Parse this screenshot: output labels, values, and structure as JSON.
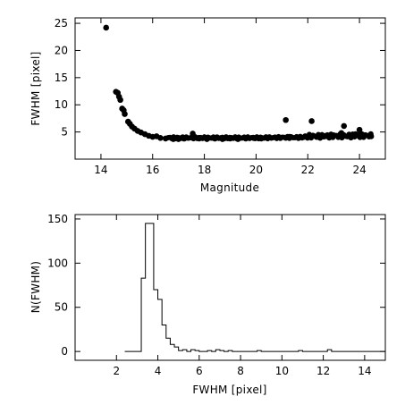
{
  "chart_data": [
    {
      "type": "scatter",
      "xlabel": "Magnitude",
      "ylabel": "FWHM [pixel]",
      "xlim": [
        13,
        25
      ],
      "ylim": [
        0,
        26
      ],
      "xticks": [
        14,
        16,
        18,
        20,
        22,
        24
      ],
      "yticks": [
        5,
        10,
        15,
        20,
        25
      ],
      "xtick_labels": [
        "14",
        "16",
        "18",
        "20",
        "22",
        "24"
      ],
      "ytick_labels": [
        "5",
        "10",
        "15",
        "20",
        "25"
      ],
      "points": [
        [
          14.2,
          24.2
        ],
        [
          14.58,
          12.4
        ],
        [
          14.65,
          12.2
        ],
        [
          14.7,
          11.5
        ],
        [
          14.75,
          10.9
        ],
        [
          14.82,
          9.3
        ],
        [
          14.88,
          9.0
        ],
        [
          14.92,
          8.3
        ],
        [
          15.05,
          6.9
        ],
        [
          15.12,
          6.5
        ],
        [
          15.2,
          6.0
        ],
        [
          15.3,
          5.6
        ],
        [
          15.42,
          5.2
        ],
        [
          15.55,
          4.9
        ],
        [
          15.7,
          4.6
        ],
        [
          15.85,
          4.3
        ],
        [
          16.0,
          4.1
        ],
        [
          16.15,
          4.2
        ],
        [
          16.3,
          3.9
        ],
        [
          16.5,
          3.8
        ],
        [
          16.8,
          3.7
        ],
        [
          17.0,
          3.7
        ],
        [
          17.2,
          3.8
        ],
        [
          17.55,
          4.7
        ],
        [
          17.8,
          3.8
        ],
        [
          18.1,
          3.7
        ],
        [
          18.4,
          3.8
        ],
        [
          18.7,
          3.7
        ],
        [
          19.0,
          3.8
        ],
        [
          19.3,
          3.7
        ],
        [
          19.6,
          3.8
        ],
        [
          19.9,
          3.9
        ],
        [
          20.2,
          3.8
        ],
        [
          20.5,
          4.0
        ],
        [
          20.8,
          3.9
        ],
        [
          21.15,
          7.2
        ],
        [
          21.3,
          4.1
        ],
        [
          21.6,
          4.0
        ],
        [
          21.9,
          4.2
        ],
        [
          22.15,
          7.0
        ],
        [
          22.4,
          4.1
        ],
        [
          22.7,
          4.3
        ],
        [
          23.0,
          4.4
        ],
        [
          23.3,
          4.8
        ],
        [
          23.4,
          6.1
        ],
        [
          23.6,
          4.5
        ],
        [
          23.85,
          4.6
        ],
        [
          24.0,
          5.4
        ],
        [
          24.2,
          4.4
        ],
        [
          24.45,
          4.2
        ]
      ]
    },
    {
      "type": "histogram",
      "xlabel": "FWHM [pixel]",
      "ylabel": "N(FWHM)",
      "xlim": [
        0,
        15
      ],
      "ylim": [
        -10,
        155
      ],
      "xticks": [
        2,
        4,
        6,
        8,
        10,
        12,
        14
      ],
      "yticks": [
        0,
        50,
        100,
        150
      ],
      "xtick_labels": [
        "2",
        "4",
        "6",
        "8",
        "10",
        "12",
        "14"
      ],
      "ytick_labels": [
        "0",
        "50",
        "100",
        "150"
      ],
      "bin_width": 0.2,
      "bins": [
        [
          2.5,
          0
        ],
        [
          2.7,
          0
        ],
        [
          2.9,
          0
        ],
        [
          3.1,
          0
        ],
        [
          3.3,
          83
        ],
        [
          3.5,
          145
        ],
        [
          3.7,
          145
        ],
        [
          3.9,
          70
        ],
        [
          4.1,
          59
        ],
        [
          4.3,
          30
        ],
        [
          4.5,
          15
        ],
        [
          4.7,
          8
        ],
        [
          4.9,
          5
        ],
        [
          5.1,
          1
        ],
        [
          5.3,
          2
        ],
        [
          5.5,
          0
        ],
        [
          5.7,
          2
        ],
        [
          5.9,
          1
        ],
        [
          6.1,
          0
        ],
        [
          6.3,
          0
        ],
        [
          6.5,
          1
        ],
        [
          6.7,
          0
        ],
        [
          6.9,
          2
        ],
        [
          7.1,
          1
        ],
        [
          7.3,
          0
        ],
        [
          7.5,
          1
        ],
        [
          7.7,
          0
        ],
        [
          7.9,
          0
        ],
        [
          8.1,
          0
        ],
        [
          8.3,
          0
        ],
        [
          8.5,
          0
        ],
        [
          8.7,
          0
        ],
        [
          8.9,
          1
        ],
        [
          9.1,
          0
        ],
        [
          9.3,
          0
        ],
        [
          9.5,
          0
        ],
        [
          9.7,
          0
        ],
        [
          9.9,
          0
        ],
        [
          10.1,
          0
        ],
        [
          10.3,
          0
        ],
        [
          10.5,
          0
        ],
        [
          10.7,
          0
        ],
        [
          10.9,
          1
        ],
        [
          11.1,
          0
        ],
        [
          11.3,
          0
        ],
        [
          11.5,
          0
        ],
        [
          11.7,
          0
        ],
        [
          11.9,
          0
        ],
        [
          12.1,
          0
        ],
        [
          12.3,
          2
        ],
        [
          12.5,
          0
        ],
        [
          12.7,
          0
        ],
        [
          12.9,
          0
        ],
        [
          13.1,
          0
        ],
        [
          13.3,
          0
        ],
        [
          13.5,
          0
        ],
        [
          13.7,
          0
        ],
        [
          13.9,
          0
        ],
        [
          14.1,
          0
        ],
        [
          14.3,
          0
        ],
        [
          14.5,
          0
        ],
        [
          14.7,
          0
        ],
        [
          14.9,
          0
        ]
      ]
    }
  ]
}
